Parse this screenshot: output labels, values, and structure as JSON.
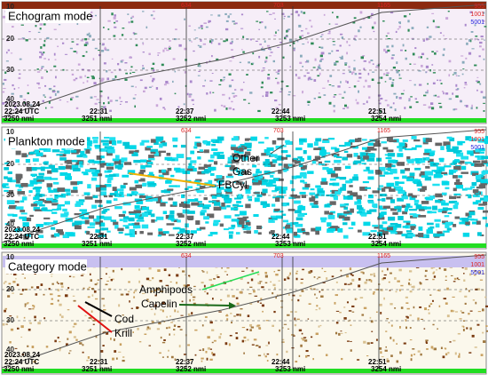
{
  "panels": [
    {
      "title": "Echogram mode",
      "annotations": []
    },
    {
      "title": "Plankton mode",
      "annotations": [
        "Other",
        "Gas",
        "FBCyl"
      ]
    },
    {
      "title": "Category mode",
      "annotations": [
        "Amphipods",
        "Capelin",
        "Cod",
        "Krill"
      ]
    }
  ],
  "depth_labels": [
    "10",
    "20",
    "30",
    "40"
  ],
  "date": "2023.08.24",
  "start_time": "22:24 UTC",
  "times": [
    "22:31",
    "22:37",
    "22:44",
    "22:51"
  ],
  "distances": [
    "3250 nmi",
    "3251 nmi",
    "3252 nmi",
    "3253 nmi",
    "3254 nmi"
  ],
  "top_markers": [
    "634",
    "703",
    "1165"
  ],
  "right_markers": [
    "955",
    "1001",
    "5001"
  ]
}
